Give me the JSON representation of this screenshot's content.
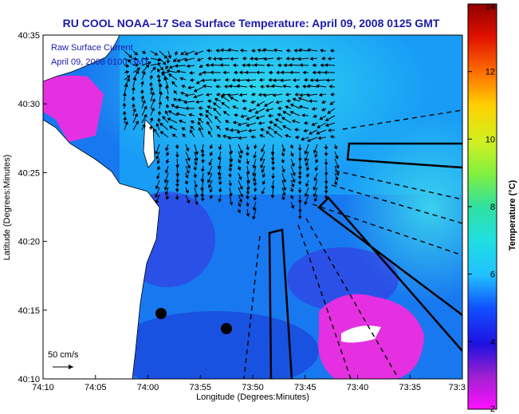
{
  "chart_data": {
    "type": "heatmap",
    "title": "RU COOL  NOAA–17  Sea Surface Temperature:  April 09, 2008 0125 GMT",
    "xlabel": "Longitude (Degrees:Minutes)",
    "ylabel": "Latitude (Degrees:Minutes)",
    "x_ticks": [
      "74:10",
      "74:05",
      "74:00",
      "73:55",
      "73:50",
      "73:45",
      "73:40",
      "73:35",
      "73:3"
    ],
    "y_ticks": [
      "40:10",
      "40:15",
      "40:20",
      "40:25",
      "40:30",
      "40:35"
    ],
    "xlim": [
      "74:10",
      "73:30"
    ],
    "ylim": [
      "40:10",
      "40:35"
    ],
    "annotation_lines": [
      "Raw Surface Current",
      "April 09, 2008 0100 GMT"
    ],
    "scale_label": "50 cm/s",
    "colorbar": {
      "label": "Temperature (°C)",
      "ticks": [
        "2",
        "4",
        "6",
        "8",
        "10",
        "12",
        "14"
      ],
      "min": 2,
      "max": 14
    },
    "grid": false
  },
  "colors": {
    "title": "#1a1aa8",
    "annotation": "#1a1aa8",
    "land": "#ffffff",
    "vector": "#000000"
  }
}
